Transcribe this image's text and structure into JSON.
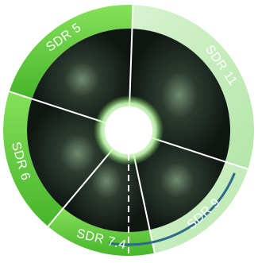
{
  "wheel": {
    "segments": [
      {
        "label": "SDR 5",
        "active": false,
        "outer_color": "#4fbf2c",
        "outer_color_light": "#7fdc4f"
      },
      {
        "label": "SDR 11",
        "active": true,
        "outer_color": "#c6ecbf",
        "outer_color_light": "#e7f8e3"
      },
      {
        "label": "SDR 9",
        "active": true,
        "outer_color": "#c6ecbf",
        "outer_color_light": "#e7f8e3"
      },
      {
        "label": "SDR 7.4",
        "active": false,
        "outer_color": "#4fbf2c",
        "outer_color_light": "#7fdc4f"
      },
      {
        "label": "SDR 6",
        "active": false,
        "outer_color": "#4fbf2c",
        "outer_color_light": "#7fdc4f"
      }
    ],
    "colors": {
      "inner_dark": "#0f1612",
      "inner_mid": "#2b3a2f",
      "glow": "#9cf080",
      "divider": "#ffffff",
      "progress_arc": "#2c6a8a"
    }
  }
}
